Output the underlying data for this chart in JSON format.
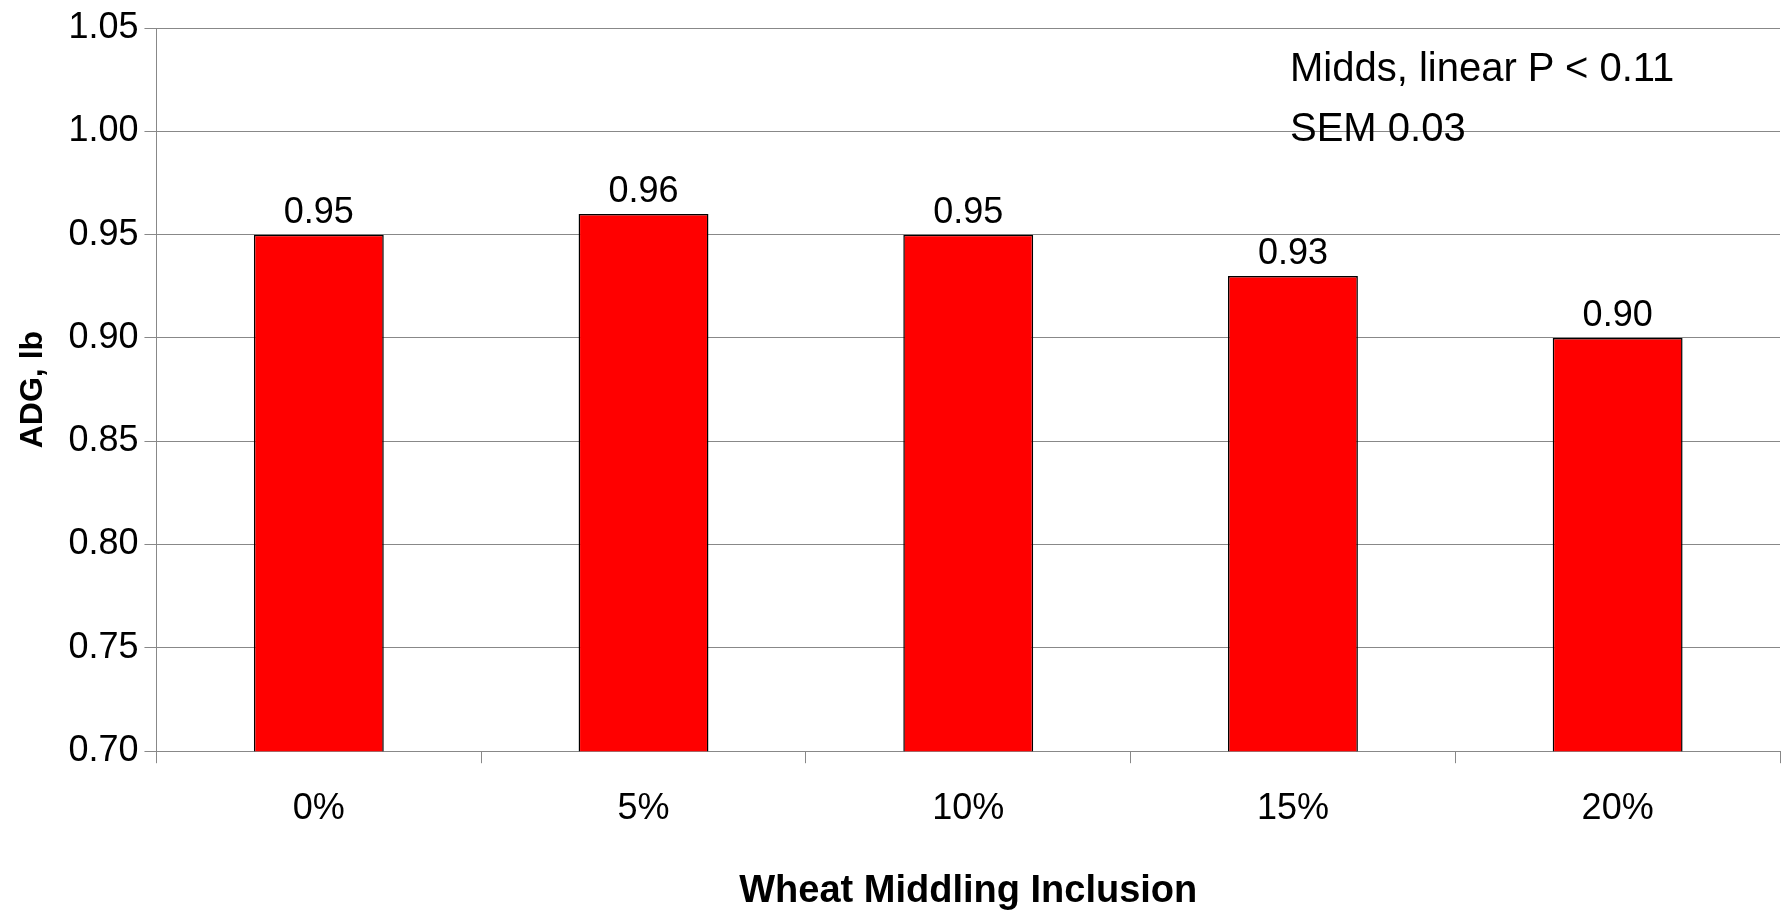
{
  "chart_data": {
    "type": "bar",
    "xlabel": "Wheat Middling Inclusion",
    "ylabel": "ADG, lb",
    "categories": [
      "0%",
      "5%",
      "10%",
      "15%",
      "20%"
    ],
    "values": [
      0.95,
      0.96,
      0.95,
      0.93,
      0.9
    ],
    "value_labels": [
      "0.95",
      "0.96",
      "0.95",
      "0.93",
      "0.90"
    ],
    "color": "#ff0000",
    "ylim": [
      0.7,
      1.05
    ],
    "yticks": [
      {
        "value": 0.7,
        "label": "0.70"
      },
      0.75,
      {
        "value": 0.8,
        "label": "0.80"
      },
      0.85,
      {
        "value": 0.9,
        "label": "0.90"
      },
      0.95,
      {
        "value": 1.0,
        "label": "1.00"
      },
      1.05
    ],
    "grid": "y",
    "legend": false,
    "annotations": [
      "Midds, linear P < 0.11",
      "SEM 0.03"
    ]
  }
}
